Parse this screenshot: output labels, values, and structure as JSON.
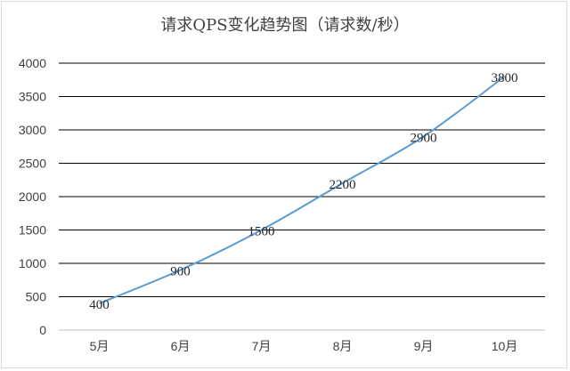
{
  "chart_data": {
    "type": "line",
    "title": "请求QPS变化趋势图（请求数/秒）",
    "categories": [
      "5月",
      "6月",
      "7月",
      "8月",
      "9月",
      "10月"
    ],
    "series": [
      {
        "values": [
          400,
          900,
          1500,
          2200,
          2900,
          3800
        ],
        "color": "#5b9bd5"
      }
    ],
    "ylim": [
      0,
      4000
    ],
    "yticks": [
      0,
      500,
      1000,
      1500,
      2000,
      2500,
      3000,
      3500,
      4000
    ],
    "grid": true,
    "legend": "none",
    "data_labels": true
  }
}
